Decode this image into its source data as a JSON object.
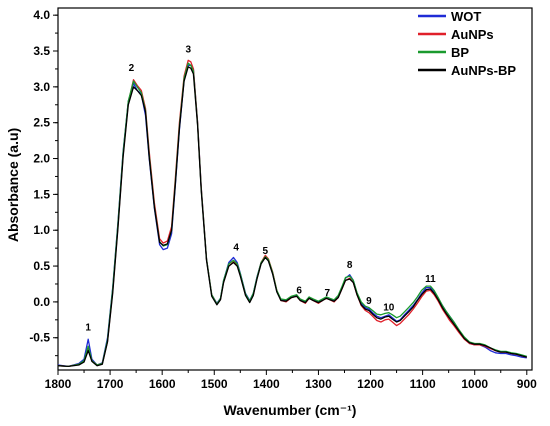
{
  "chart_data": {
    "type": "line",
    "xlabel": "Wavenumber (cm⁻¹)",
    "ylabel": "Absorbance (a.u)",
    "xlim": [
      1800,
      890
    ],
    "ylim": [
      -0.95,
      4.1
    ],
    "x_reversed": true,
    "grid": false,
    "legend_position": "top-right",
    "xticks": [
      1800,
      1700,
      1600,
      1500,
      1400,
      1300,
      1200,
      1100,
      1000,
      900
    ],
    "yticks": [
      -0.5,
      0.0,
      0.5,
      1.0,
      1.5,
      2.0,
      2.5,
      3.0,
      3.5,
      4.0
    ],
    "ytick_labels": [
      "-0.5",
      "0.0",
      "0.5",
      "1.0",
      "1.5",
      "2.0",
      "2.5",
      "3.0",
      "3.5",
      "4.0"
    ],
    "x": [
      1800,
      1780,
      1760,
      1750,
      1742,
      1735,
      1725,
      1715,
      1705,
      1695,
      1685,
      1675,
      1665,
      1655,
      1648,
      1640,
      1632,
      1625,
      1615,
      1605,
      1598,
      1590,
      1582,
      1575,
      1567,
      1558,
      1550,
      1545,
      1540,
      1532,
      1525,
      1515,
      1505,
      1495,
      1488,
      1482,
      1472,
      1463,
      1456,
      1450,
      1440,
      1432,
      1425,
      1418,
      1410,
      1402,
      1396,
      1388,
      1380,
      1372,
      1362,
      1352,
      1342,
      1335,
      1325,
      1318,
      1310,
      1300,
      1292,
      1285,
      1278,
      1270,
      1262,
      1255,
      1248,
      1240,
      1233,
      1226,
      1218,
      1210,
      1203,
      1196,
      1188,
      1180,
      1172,
      1165,
      1158,
      1150,
      1143,
      1135,
      1127,
      1118,
      1110,
      1102,
      1093,
      1085,
      1078,
      1070,
      1062,
      1055,
      1048,
      1040,
      1030,
      1020,
      1010,
      1000,
      990,
      980,
      970,
      960,
      950,
      940,
      930,
      920,
      910,
      900
    ],
    "series": [
      {
        "name": "WOT",
        "color": "#1f2bd6",
        "y": [
          -0.88,
          -0.9,
          -0.86,
          -0.8,
          -0.52,
          -0.8,
          -0.88,
          -0.85,
          -0.5,
          0.2,
          1.1,
          2.1,
          2.8,
          3.05,
          2.95,
          2.9,
          2.6,
          2.0,
          1.3,
          0.8,
          0.73,
          0.75,
          0.95,
          1.6,
          2.4,
          3.1,
          3.3,
          3.3,
          3.25,
          2.5,
          1.6,
          0.6,
          0.1,
          -0.02,
          0.05,
          0.3,
          0.55,
          0.62,
          0.55,
          0.4,
          0.12,
          0.02,
          0.12,
          0.35,
          0.55,
          0.62,
          0.58,
          0.4,
          0.15,
          0.03,
          0.02,
          0.07,
          0.09,
          0.03,
          0.0,
          0.06,
          0.03,
          0.0,
          0.03,
          0.06,
          0.04,
          0.02,
          0.08,
          0.2,
          0.33,
          0.38,
          0.3,
          0.12,
          -0.02,
          -0.08,
          -0.1,
          -0.15,
          -0.2,
          -0.22,
          -0.2,
          -0.18,
          -0.22,
          -0.27,
          -0.25,
          -0.18,
          -0.12,
          -0.05,
          0.03,
          0.12,
          0.2,
          0.2,
          0.14,
          0.05,
          -0.05,
          -0.13,
          -0.2,
          -0.28,
          -0.4,
          -0.5,
          -0.58,
          -0.6,
          -0.6,
          -0.63,
          -0.68,
          -0.71,
          -0.72,
          -0.72,
          -0.74,
          -0.75,
          -0.77,
          -0.78
        ]
      },
      {
        "name": "AuNPs",
        "color": "#e0202a",
        "y": [
          -0.89,
          -0.9,
          -0.87,
          -0.83,
          -0.65,
          -0.82,
          -0.88,
          -0.86,
          -0.55,
          0.15,
          1.05,
          2.05,
          2.78,
          3.1,
          3.02,
          2.95,
          2.7,
          2.1,
          1.38,
          0.88,
          0.82,
          0.85,
          1.05,
          1.7,
          2.5,
          3.15,
          3.37,
          3.35,
          3.25,
          2.5,
          1.6,
          0.6,
          0.1,
          -0.03,
          0.04,
          0.28,
          0.5,
          0.56,
          0.52,
          0.38,
          0.1,
          0.0,
          0.1,
          0.33,
          0.55,
          0.65,
          0.6,
          0.42,
          0.16,
          0.02,
          0.0,
          0.06,
          0.08,
          0.02,
          -0.02,
          0.05,
          0.02,
          -0.02,
          0.02,
          0.05,
          0.03,
          0.0,
          0.06,
          0.18,
          0.3,
          0.33,
          0.27,
          0.1,
          -0.05,
          -0.12,
          -0.15,
          -0.2,
          -0.26,
          -0.28,
          -0.25,
          -0.24,
          -0.28,
          -0.33,
          -0.3,
          -0.24,
          -0.18,
          -0.1,
          -0.02,
          0.07,
          0.15,
          0.16,
          0.1,
          0.01,
          -0.1,
          -0.18,
          -0.26,
          -0.33,
          -0.43,
          -0.52,
          -0.58,
          -0.6,
          -0.6,
          -0.62,
          -0.65,
          -0.68,
          -0.7,
          -0.7,
          -0.72,
          -0.73,
          -0.75,
          -0.77
        ]
      },
      {
        "name": "BP",
        "color": "#1a9a2e",
        "y": [
          -0.89,
          -0.9,
          -0.87,
          -0.82,
          -0.62,
          -0.82,
          -0.88,
          -0.86,
          -0.53,
          0.18,
          1.08,
          2.08,
          2.8,
          3.08,
          3.0,
          2.92,
          2.67,
          2.05,
          1.33,
          0.84,
          0.78,
          0.8,
          1.0,
          1.65,
          2.45,
          3.12,
          3.33,
          3.3,
          3.22,
          2.48,
          1.58,
          0.6,
          0.1,
          -0.03,
          0.05,
          0.3,
          0.53,
          0.58,
          0.53,
          0.39,
          0.11,
          0.01,
          0.12,
          0.34,
          0.55,
          0.63,
          0.59,
          0.41,
          0.16,
          0.04,
          0.03,
          0.08,
          0.1,
          0.04,
          0.01,
          0.07,
          0.04,
          0.01,
          0.04,
          0.07,
          0.05,
          0.03,
          0.09,
          0.21,
          0.34,
          0.36,
          0.3,
          0.13,
          0.0,
          -0.06,
          -0.08,
          -0.12,
          -0.17,
          -0.18,
          -0.16,
          -0.15,
          -0.18,
          -0.22,
          -0.2,
          -0.14,
          -0.08,
          -0.01,
          0.07,
          0.16,
          0.22,
          0.22,
          0.16,
          0.06,
          -0.05,
          -0.13,
          -0.2,
          -0.28,
          -0.39,
          -0.49,
          -0.56,
          -0.58,
          -0.58,
          -0.6,
          -0.64,
          -0.67,
          -0.69,
          -0.69,
          -0.71,
          -0.72,
          -0.74,
          -0.76
        ]
      },
      {
        "name": "AuNPs-BP",
        "color": "#000000",
        "y": [
          -0.89,
          -0.9,
          -0.88,
          -0.84,
          -0.68,
          -0.83,
          -0.89,
          -0.87,
          -0.56,
          0.12,
          1.02,
          2.02,
          2.75,
          3.0,
          2.95,
          2.88,
          2.65,
          2.02,
          1.32,
          0.83,
          0.79,
          0.81,
          1.0,
          1.62,
          2.42,
          3.08,
          3.28,
          3.26,
          3.18,
          2.46,
          1.56,
          0.58,
          0.08,
          -0.04,
          0.03,
          0.27,
          0.5,
          0.55,
          0.5,
          0.36,
          0.09,
          -0.01,
          0.09,
          0.32,
          0.53,
          0.62,
          0.57,
          0.39,
          0.14,
          0.02,
          0.01,
          0.06,
          0.08,
          0.02,
          -0.01,
          0.05,
          0.02,
          -0.01,
          0.02,
          0.05,
          0.03,
          0.01,
          0.06,
          0.18,
          0.3,
          0.32,
          0.27,
          0.1,
          -0.04,
          -0.1,
          -0.12,
          -0.17,
          -0.22,
          -0.24,
          -0.21,
          -0.2,
          -0.24,
          -0.28,
          -0.26,
          -0.2,
          -0.14,
          -0.07,
          0.02,
          0.1,
          0.17,
          0.18,
          0.12,
          0.03,
          -0.08,
          -0.16,
          -0.23,
          -0.31,
          -0.41,
          -0.51,
          -0.57,
          -0.59,
          -0.59,
          -0.61,
          -0.64,
          -0.68,
          -0.7,
          -0.7,
          -0.72,
          -0.73,
          -0.75,
          -0.77
        ]
      }
    ],
    "annotations": [
      {
        "text": "1",
        "x": 1742,
        "y": -0.4
      },
      {
        "text": "2",
        "x": 1659,
        "y": 3.22
      },
      {
        "text": "3",
        "x": 1550,
        "y": 3.48
      },
      {
        "text": "4",
        "x": 1458,
        "y": 0.72
      },
      {
        "text": "5",
        "x": 1402,
        "y": 0.67
      },
      {
        "text": "6",
        "x": 1337,
        "y": 0.12
      },
      {
        "text": "7",
        "x": 1283,
        "y": 0.08
      },
      {
        "text": "8",
        "x": 1240,
        "y": 0.47
      },
      {
        "text": "9",
        "x": 1203,
        "y": -0.03
      },
      {
        "text": "10",
        "x": 1165,
        "y": -0.12
      },
      {
        "text": "11",
        "x": 1085,
        "y": 0.28
      }
    ]
  }
}
